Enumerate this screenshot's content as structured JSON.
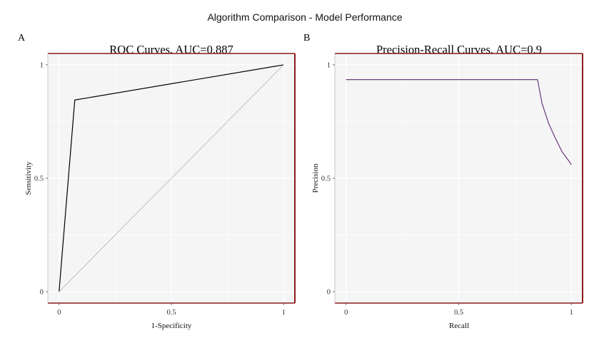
{
  "figure": {
    "title": "Algorithm Comparison - Model Performance"
  },
  "chart_data": [
    {
      "type": "line",
      "panel_label": "A",
      "title": "ROC Curves, AUC=0.887",
      "xlabel": "1-Specificity",
      "ylabel": "Sensitivity",
      "xlim": [
        -0.05,
        1.05
      ],
      "ylim": [
        -0.05,
        1.05
      ],
      "xticks": [
        0,
        0.5,
        1
      ],
      "xtick_labels": [
        "0",
        "0.5",
        "1"
      ],
      "yticks": [
        0,
        0.5,
        1
      ],
      "ytick_labels": [
        "0",
        "0.5",
        "1"
      ],
      "grid": true,
      "series": [
        {
          "x": [
            0,
            0.07,
            1
          ],
          "y": [
            0,
            0.845,
            1
          ],
          "color": "#000000"
        },
        {
          "x": [
            0,
            1
          ],
          "y": [
            0,
            1
          ],
          "color": "#b3b3b3"
        }
      ],
      "frame_colors": {
        "top": "#8b1a1a",
        "right": "#8b1a1a",
        "bottom": "#8b1a1a",
        "left": "#bbbbbb"
      }
    },
    {
      "type": "line",
      "panel_label": "B",
      "title": "Precision-Recall Curves, AUC=0.9",
      "xlabel": "Recall",
      "ylabel": "Precision",
      "xlim": [
        -0.05,
        1.05
      ],
      "ylim": [
        -0.05,
        1.05
      ],
      "xticks": [
        0,
        0.5,
        1
      ],
      "xtick_labels": [
        "0",
        "0.5",
        "1"
      ],
      "yticks": [
        0,
        0.5,
        1
      ],
      "ytick_labels": [
        "0",
        "0.5",
        "1"
      ],
      "grid": true,
      "series": [
        {
          "x": [
            0,
            0.845,
            0.85,
            0.87,
            0.9,
            0.93,
            0.96,
            0.99,
            1.0
          ],
          "y": [
            0.935,
            0.935,
            0.935,
            0.83,
            0.74,
            0.675,
            0.615,
            0.575,
            0.56
          ],
          "color": "#6b3a7d"
        }
      ],
      "frame_colors": {
        "top": "#8b1a1a",
        "right": "#8b1a1a",
        "bottom": "#8b1a1a",
        "left": "#bbbbbb"
      }
    }
  ]
}
